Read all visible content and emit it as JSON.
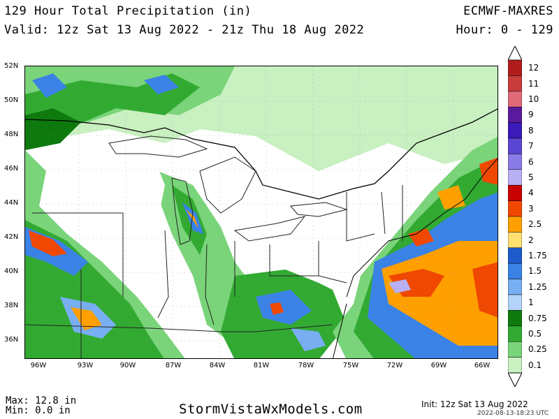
{
  "header": {
    "title": "129 Hour Total Precipitation (in)",
    "valid": "Valid: 12z Sat 13 Aug 2022 - 21z Thu 18 Aug 2022",
    "model": "ECMWF-MAXRES",
    "hours": "Hour: 0 - 129"
  },
  "map": {
    "lat_labels": [
      "52N",
      "50N",
      "48N",
      "46N",
      "44N",
      "42N",
      "40N",
      "38N",
      "36N"
    ],
    "lon_labels": [
      "96W",
      "93W",
      "90W",
      "87W",
      "84W",
      "81W",
      "78W",
      "75W",
      "72W",
      "69W",
      "66W"
    ]
  },
  "legend": {
    "levels": [
      "12",
      "11",
      "10",
      "9",
      "8",
      "7",
      "6",
      "5",
      "4",
      "3",
      "2.5",
      "2",
      "1.75",
      "1.5",
      "1.25",
      "1",
      "0.75",
      "0.5",
      "0.25",
      "0.1"
    ],
    "colors": [
      "#b01c1c",
      "#c83c3c",
      "#e06a78",
      "#5a1a9e",
      "#3a1ab8",
      "#5a46d2",
      "#8a7ce6",
      "#b9b0f2",
      "#c80000",
      "#f04800",
      "#ffa000",
      "#ffe070",
      "#1e5ccc",
      "#3a82e6",
      "#78aef2",
      "#b4d4fa",
      "#0e7a0e",
      "#32aa32",
      "#7ad47a",
      "#c8f0c0"
    ]
  },
  "footer": {
    "max": "Max: 12.8 in",
    "min": "Min: 0.0 in",
    "site": "StormVistaWxModels.com",
    "init": "Init: 12z Sat 13 Aug 2022",
    "stamp": "2022-08-13-18:23 UTC"
  }
}
